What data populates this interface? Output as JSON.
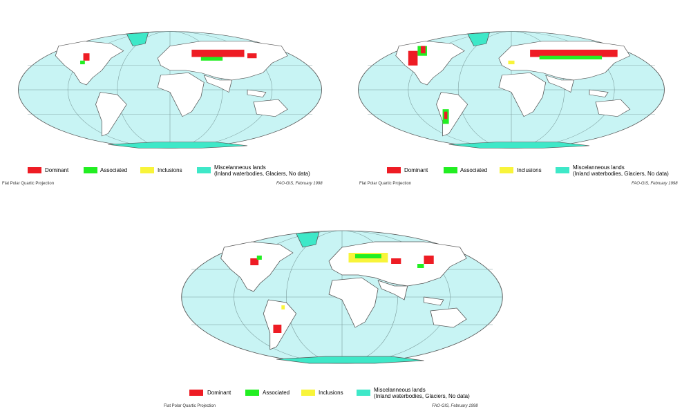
{
  "legend": {
    "items": [
      {
        "label": "Dominant",
        "color": "#ee1c24"
      },
      {
        "label": "Associated",
        "color": "#22ee22"
      },
      {
        "label": "Inclusions",
        "color": "#f8f43a"
      },
      {
        "label": "Miscelanneous lands",
        "sublabel": "(Inland waterbodies, Glaciers, No data)",
        "color": "#3ee8c8"
      }
    ]
  },
  "projection_label": "Flat Polar Quartic Projection",
  "credit": "FAO-GIS, February 1998",
  "colors": {
    "ocean": "#c8f4f4",
    "land": "#ffffff",
    "coast": "#555555",
    "grid": "#7a9a9a"
  }
}
